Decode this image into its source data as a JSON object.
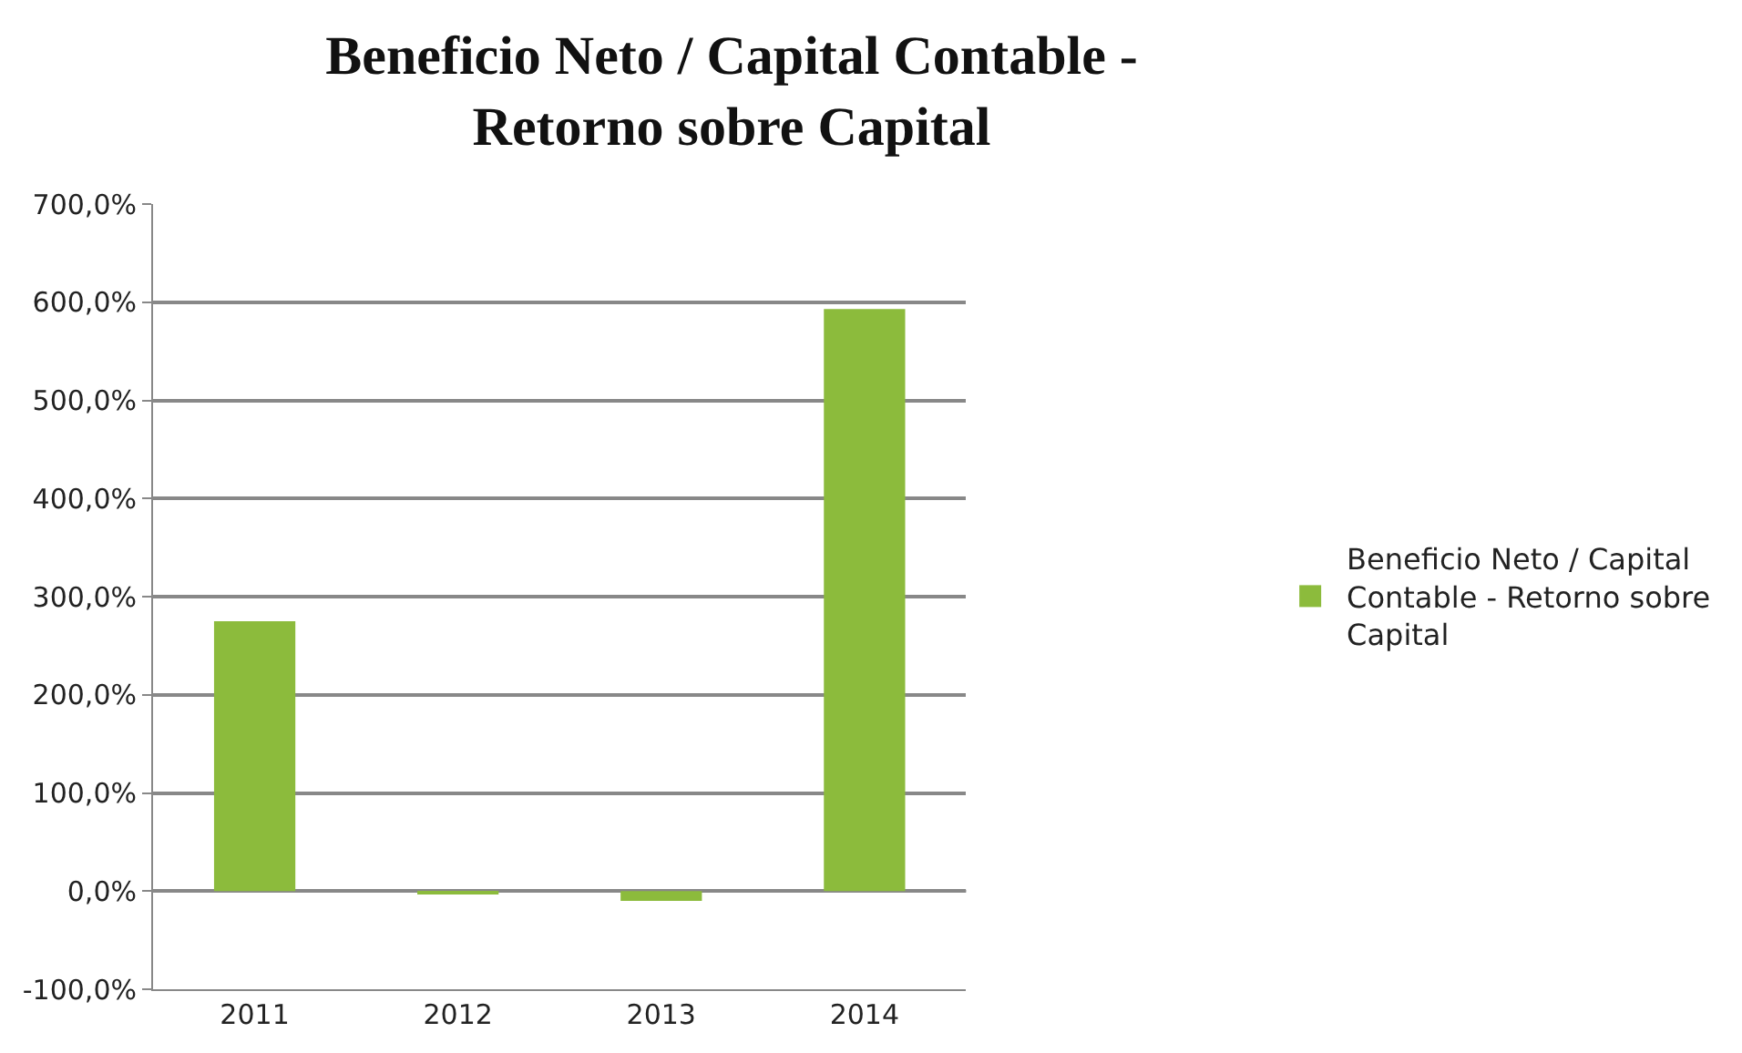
{
  "chart_data": {
    "type": "bar",
    "title": "Beneficio Neto / Capital Contable -\nRetorno sobre Capital",
    "categories": [
      "2011",
      "2012",
      "2013",
      "2014"
    ],
    "series": [
      {
        "name": "Beneficio Neto / Capital Contable - Retorno sobre Capital",
        "color": "#8cbb3c",
        "values": [
          275,
          -2,
          -10,
          593
        ]
      }
    ],
    "ylim": [
      -100,
      700
    ],
    "yticks": [
      {
        "value": -100,
        "label": "-100,0%"
      },
      {
        "value": 0,
        "label": "0,0%"
      },
      {
        "value": 100,
        "label": "100,0%"
      },
      {
        "value": 200,
        "label": "200,0%"
      },
      {
        "value": 300,
        "label": "300,0%"
      },
      {
        "value": 400,
        "label": "400,0%"
      },
      {
        "value": 500,
        "label": "500,0%"
      },
      {
        "value": 600,
        "label": "600,0%"
      },
      {
        "value": 700,
        "label": "700,0%"
      }
    ],
    "grid": "y",
    "legend": "right"
  }
}
